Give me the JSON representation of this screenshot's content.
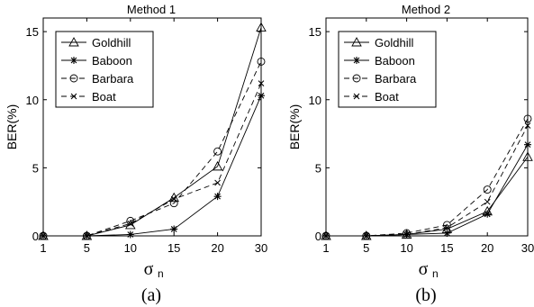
{
  "chart_data": [
    {
      "type": "line",
      "title": "Method 1",
      "caption": "(a)",
      "xlabel": "σ",
      "xlabel_subscript": "n",
      "ylabel": "BER(%)",
      "ylim": [
        0,
        16
      ],
      "x_tick_labels": [
        "1",
        "5",
        "10",
        "15",
        "20",
        "30"
      ],
      "x": [
        1,
        5,
        10,
        15,
        20,
        30
      ],
      "y_ticks": [
        0,
        5,
        10,
        15
      ],
      "grid": false,
      "legend_position": "top-left",
      "series": [
        {
          "name": "Goldhill",
          "style": "solid",
          "marker": "triangle",
          "values": [
            0,
            0,
            0.8,
            2.8,
            5.1,
            15.3
          ]
        },
        {
          "name": "Baboon",
          "style": "solid",
          "marker": "star",
          "values": [
            0,
            0,
            0.1,
            0.5,
            2.9,
            10.3
          ]
        },
        {
          "name": "Barbara",
          "style": "dashed",
          "marker": "circle",
          "values": [
            0,
            0,
            1.1,
            2.4,
            6.2,
            12.8
          ]
        },
        {
          "name": "Boat",
          "style": "dashed",
          "marker": "x",
          "values": [
            0,
            0,
            0.9,
            2.7,
            3.9,
            11.2
          ]
        }
      ]
    },
    {
      "type": "line",
      "title": "Method 2",
      "caption": "(b)",
      "xlabel": "σ",
      "xlabel_subscript": "n",
      "ylabel": "BER(%)",
      "ylim": [
        0,
        16
      ],
      "x_tick_labels": [
        "1",
        "5",
        "10",
        "15",
        "20",
        "30"
      ],
      "x": [
        1,
        5,
        10,
        15,
        20,
        30
      ],
      "y_ticks": [
        0,
        5,
        10,
        15
      ],
      "grid": false,
      "legend_position": "top-left",
      "series": [
        {
          "name": "Goldhill",
          "style": "solid",
          "marker": "triangle",
          "values": [
            0,
            0,
            0.1,
            0.5,
            1.8,
            5.8
          ]
        },
        {
          "name": "Baboon",
          "style": "solid",
          "marker": "star",
          "values": [
            0,
            0,
            0.1,
            0.2,
            1.6,
            6.7
          ]
        },
        {
          "name": "Barbara",
          "style": "dashed",
          "marker": "circle",
          "values": [
            0,
            0,
            0.2,
            0.8,
            3.4,
            8.6
          ]
        },
        {
          "name": "Boat",
          "style": "dashed",
          "marker": "x",
          "values": [
            0,
            0,
            0.1,
            0.6,
            2.5,
            8.1
          ]
        }
      ]
    }
  ]
}
